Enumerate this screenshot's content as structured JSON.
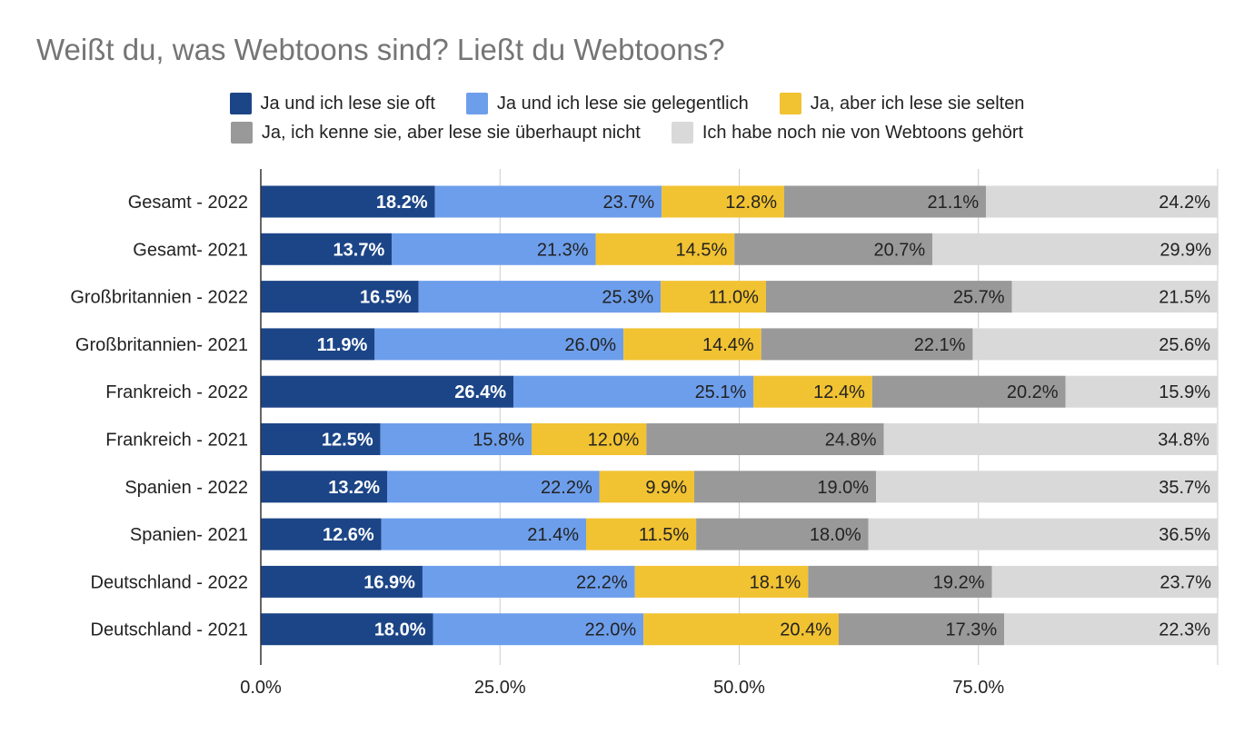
{
  "chart_data": {
    "type": "bar",
    "orientation": "horizontal",
    "stacked": true,
    "title": "Weißt du, was Webtoons sind? Ließt du Webtoons?",
    "categories": [
      "Gesamt - 2022",
      "Gesamt- 2021",
      "Großbritannien - 2022",
      "Großbritannien- 2021",
      "Frankreich - 2022",
      "Frankreich - 2021",
      "Spanien - 2022",
      "Spanien- 2021",
      "Deutschland - 2022",
      "Deutschland - 2021"
    ],
    "series": [
      {
        "name": "Ja und ich lese sie oft",
        "color": "#1c4587",
        "label_color": "#ffffff",
        "values": [
          18.2,
          13.7,
          16.5,
          11.9,
          26.4,
          12.5,
          13.2,
          12.6,
          16.9,
          18.0
        ],
        "labels": [
          "18.2%",
          "13.7%",
          "16.5%",
          "11.9%",
          "26.4%",
          "12.5%",
          "13.2%",
          "12.6%",
          "16.9%",
          "18.0%"
        ]
      },
      {
        "name": "Ja und ich lese sie gelegentlich",
        "color": "#6d9eeb",
        "label_color": "#222222",
        "values": [
          23.7,
          21.3,
          25.3,
          26.0,
          25.1,
          15.8,
          22.2,
          21.4,
          22.2,
          22.0
        ],
        "labels": [
          "23.7%",
          "21.3%",
          "25.3%",
          "26.0%",
          "25.1%",
          "15.8%",
          "22.2%",
          "21.4%",
          "22.2%",
          "22.0%"
        ]
      },
      {
        "name": "Ja, aber ich lese sie selten",
        "color": "#f1c232",
        "label_color": "#222222",
        "values": [
          12.8,
          14.5,
          11.0,
          14.4,
          12.4,
          12.0,
          9.9,
          11.5,
          18.1,
          20.4
        ],
        "labels": [
          "12.8%",
          "14.5%",
          "11.0%",
          "14.4%",
          "12.4%",
          "12.0%",
          "9.9%",
          "11.5%",
          "18.1%",
          "20.4%"
        ]
      },
      {
        "name": "Ja, ich kenne sie, aber lese sie überhaupt nicht",
        "color": "#999999",
        "label_color": "#222222",
        "values": [
          21.1,
          20.7,
          25.7,
          22.1,
          20.2,
          24.8,
          19.0,
          18.0,
          19.2,
          17.3
        ],
        "labels": [
          "21.1%",
          "20.7%",
          "25.7%",
          "22.1%",
          "20.2%",
          "24.8%",
          "19.0%",
          "18.0%",
          "19.2%",
          "17.3%"
        ]
      },
      {
        "name": "Ich habe noch nie von Webtoons gehört",
        "color": "#d9d9d9",
        "label_color": "#222222",
        "values": [
          24.2,
          29.9,
          21.5,
          25.6,
          15.9,
          34.8,
          35.7,
          36.5,
          23.7,
          22.3
        ],
        "labels": [
          "24.2%",
          "29.9%",
          "21.5%",
          "25.6%",
          "15.9%",
          "34.8%",
          "35.7%",
          "36.5%",
          "23.7%",
          "22.3%"
        ]
      }
    ],
    "x_ticks": [
      0,
      25,
      50,
      75
    ],
    "x_tick_labels": [
      "0.0%",
      "25.0%",
      "50.0%",
      "75.0%"
    ],
    "xlim": [
      0,
      100
    ],
    "grid": true,
    "legend_position": "top"
  }
}
